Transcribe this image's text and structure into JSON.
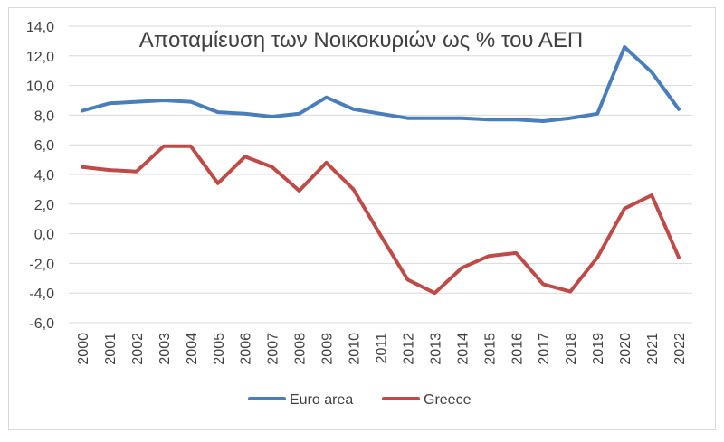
{
  "chart_data": {
    "type": "line",
    "title": "Αποταμίευση των Νοικοκυριών ως % του ΑΕΠ",
    "xlabel": "",
    "ylabel": "",
    "ylim": [
      -6,
      14
    ],
    "yticks": [
      "-6,0",
      "-4,0",
      "-2,0",
      "0,0",
      "2,0",
      "4,0",
      "6,0",
      "8,0",
      "10,0",
      "12,0",
      "14,0"
    ],
    "categories": [
      "2000",
      "2001",
      "2002",
      "2003",
      "2004",
      "2005",
      "2006",
      "2007",
      "2008",
      "2009",
      "2010",
      "2011",
      "2012",
      "2013",
      "2014",
      "2015",
      "2016",
      "2017",
      "2018",
      "2019",
      "2020",
      "2021",
      "2022"
    ],
    "grid": "horizontal",
    "legend_position": "bottom",
    "series": [
      {
        "name": "Euro area",
        "color": "#4a7ebb",
        "values": [
          8.3,
          8.8,
          8.9,
          9.0,
          8.9,
          8.2,
          8.1,
          7.9,
          8.1,
          9.2,
          8.4,
          8.1,
          7.8,
          7.8,
          7.8,
          7.7,
          7.7,
          7.6,
          7.8,
          8.1,
          12.6,
          10.9,
          8.4
        ]
      },
      {
        "name": "Greece",
        "color": "#be4b48",
        "values": [
          4.5,
          4.3,
          4.2,
          5.9,
          5.9,
          3.4,
          5.2,
          4.5,
          2.9,
          4.8,
          3.0,
          -0.1,
          -3.1,
          -4.0,
          -2.3,
          -1.5,
          -1.3,
          -3.4,
          -3.9,
          -1.6,
          1.7,
          2.6,
          -1.6
        ]
      }
    ]
  }
}
